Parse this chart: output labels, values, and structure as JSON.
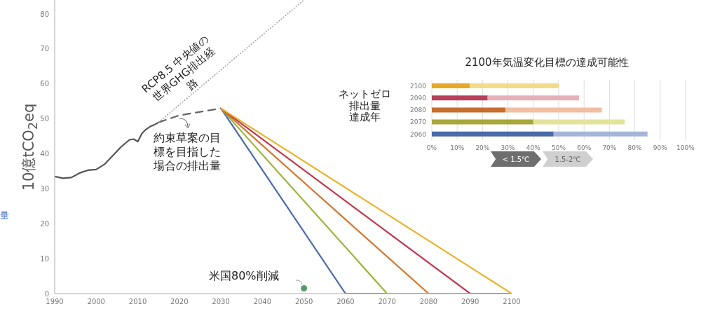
{
  "chart_data": [
    {
      "type": "line",
      "ylabel": "10億tCO$_{2}$eq",
      "xlim": [
        1990,
        2100
      ],
      "xticks": [
        1990,
        2000,
        2010,
        2020,
        2030,
        2040,
        2050,
        2060,
        2070,
        2080,
        2090,
        2100
      ],
      "ylim": [
        0,
        84
      ],
      "yticks": [
        0,
        10,
        20,
        30,
        40,
        50,
        60,
        70,
        80
      ],
      "grid": false,
      "marker": "none",
      "annotations": [
        "RCP8.5 中央値の世界GHG排出経路",
        {
          "text": "約束草案の目標を目指した場合の排出量",
          "x": 2020,
          "y": 51
        },
        "米国80%削減",
        "量"
      ],
      "series": [
        {
          "type": "line",
          "color": "#555555",
          "line_style": "solid",
          "x": [
            1990,
            1992,
            1994,
            1996,
            1998,
            2000,
            2002,
            2004,
            2006,
            2008,
            2009,
            2010,
            2011,
            2012,
            2013,
            2014,
            2015
          ],
          "values": [
            33.5,
            33,
            33.2,
            34.5,
            35.3,
            35.5,
            37,
            39.5,
            42,
            44,
            44.2,
            43.5,
            45.8,
            47,
            47.8,
            48.3,
            49
          ]
        },
        {
          "type": "line",
          "color": "#666666",
          "line_style": "dashed",
          "x": [
            2015,
            2020,
            2025,
            2030
          ],
          "values": [
            49,
            51,
            52,
            53
          ]
        },
        {
          "type": "line",
          "color": "#a0a0a0",
          "line_style": "dotted",
          "x": [
            2015,
            2050
          ],
          "values": [
            49,
            84
          ]
        },
        {
          "type": "line",
          "color": "#4a6aa8",
          "line_style": "solid",
          "x": [
            2030,
            2060,
            2100
          ],
          "values": [
            53,
            0,
            0
          ]
        },
        {
          "type": "line",
          "color": "#9fb33a",
          "line_style": "solid",
          "x": [
            2030,
            2070,
            2100
          ],
          "values": [
            53,
            0,
            0
          ]
        },
        {
          "type": "line",
          "color": "#d2772f",
          "line_style": "solid",
          "x": [
            2030,
            2080,
            2100
          ],
          "values": [
            53,
            0,
            0
          ]
        },
        {
          "type": "line",
          "color": "#c0394f",
          "line_style": "solid",
          "x": [
            2030,
            2090,
            2100
          ],
          "values": [
            53,
            0,
            0
          ]
        },
        {
          "type": "line",
          "color": "#eab22a",
          "line_style": "solid",
          "x": [
            2030,
            2100
          ],
          "values": [
            53,
            0
          ]
        },
        {
          "type": "scatter",
          "color": "#5a9a6a",
          "marker": "circle",
          "x": [
            2050
          ],
          "values": [
            1.5
          ]
        }
      ]
    },
    {
      "type": "bar",
      "orientation": "horizontal",
      "stacked": true,
      "title": "2100年気温変化目標の達成可能性",
      "ylabel": "ネットゼロ排出量達成年",
      "categories": [
        "2100",
        "2090",
        "2080",
        "2070",
        "2060"
      ],
      "xlim": [
        0,
        100
      ],
      "xticks": [
        {
          "value": 0,
          "label": "0%"
        },
        {
          "value": 10,
          "label": "10%"
        },
        {
          "value": 20,
          "label": "20%"
        },
        {
          "value": 30,
          "label": "30%"
        },
        {
          "value": 40,
          "label": "40%"
        },
        {
          "value": 50,
          "label": "50%"
        },
        {
          "value": 60,
          "label": "60%"
        },
        {
          "value": 70,
          "label": "70%"
        },
        {
          "value": 80,
          "label": "80%"
        },
        {
          "value": 90,
          "label": "90%"
        },
        {
          "value": 100,
          "label": "100%"
        }
      ],
      "grid": "x",
      "legend": "bottom",
      "series": [
        {
          "name": "< 1.5℃",
          "color": "#6e6e6e",
          "colors": [
            "#e6a826",
            "#b8405a",
            "#c86e30",
            "#a8a83a",
            "#4a6aa8"
          ],
          "values": [
            15,
            22,
            29,
            40,
            48
          ]
        },
        {
          "name": "1.5-2℃",
          "color": "#d0d0d0",
          "colors": [
            "#f3dc88",
            "#e6b0b8",
            "#f0bea0",
            "#e2e49a",
            "#a6b4dc"
          ],
          "values": [
            35,
            36,
            38,
            36,
            37
          ]
        }
      ]
    }
  ]
}
